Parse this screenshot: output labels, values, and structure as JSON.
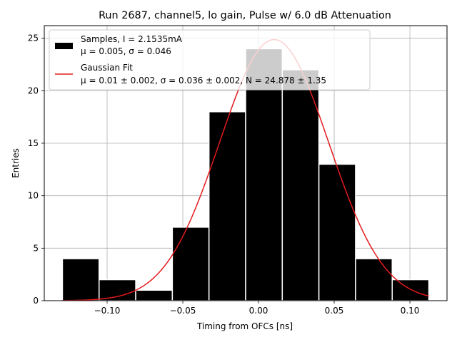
{
  "chart_data": {
    "type": "bar",
    "title": "Run 2687, channel5, lo gain, Pulse w/ 6.0 dB Attenuation",
    "xlabel": "Timing from OFCs [ns]",
    "ylabel": "Entries",
    "xlim": [
      -0.1415,
      0.1245
    ],
    "ylim": [
      0,
      26.2
    ],
    "grid": true,
    "legend_position": "top-left",
    "xticks": [
      -0.1,
      -0.05,
      0.0,
      0.05,
      0.1
    ],
    "xtick_labels": [
      "−0.10",
      "−0.05",
      "0.00",
      "0.05",
      "0.10"
    ],
    "yticks": [
      0,
      5,
      10,
      15,
      20,
      25
    ],
    "ytick_labels": [
      "0",
      "5",
      "10",
      "15",
      "20",
      "25"
    ],
    "bins": {
      "edges": [
        -0.1295,
        -0.1053,
        -0.0811,
        -0.0569,
        -0.0327,
        -0.0085,
        0.0157,
        0.0399,
        0.0641,
        0.0883,
        0.1125
      ],
      "counts": [
        4,
        2,
        1,
        7,
        18,
        24,
        22,
        13,
        4,
        2
      ],
      "color": "#000000",
      "edgecolor": "#ffffff"
    },
    "fit": {
      "mu": 0.0103,
      "sigma": 0.036,
      "N": 24.878,
      "color": "#e41a1c"
    },
    "series": [
      {
        "name": "Samples, I = 2.1535mA",
        "detail": "μ = 0.005, σ = 0.046"
      },
      {
        "name": "Gaussian Fit",
        "detail": "μ = 0.01 ± 0.002, σ = 0.036 ± 0.002, N = 24.878 ± 1.35"
      }
    ]
  }
}
